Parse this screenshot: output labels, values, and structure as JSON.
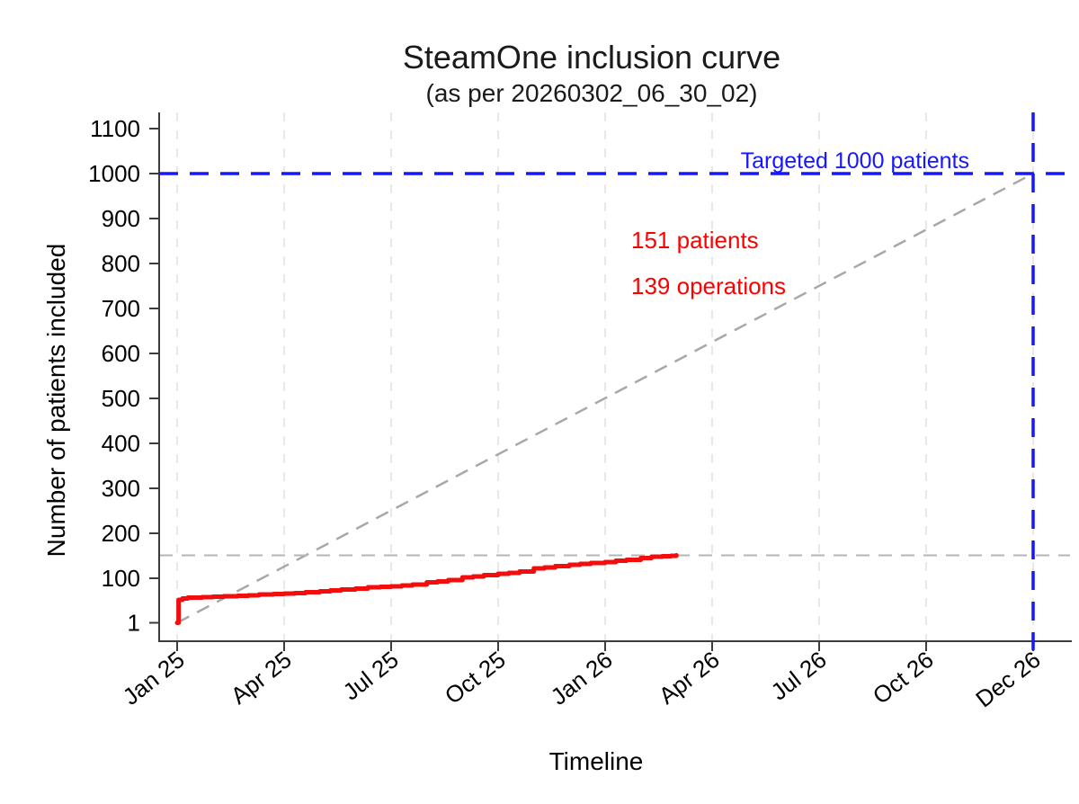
{
  "chart_data": {
    "type": "line",
    "title": "SteamOne inclusion curve",
    "subtitle": "(as per 20260302_06_30_02)",
    "xlabel": "Timeline",
    "ylabel": "Number of patients included",
    "y_ticks": [
      1,
      100,
      200,
      300,
      400,
      500,
      600,
      700,
      800,
      900,
      1000,
      1100
    ],
    "x_ticks": [
      "Jan 25",
      "Apr 25",
      "Jul 25",
      "Oct 25",
      "Jan 26",
      "Apr 26",
      "Jul 26",
      "Oct 26",
      "Dec 26"
    ],
    "x_tick_months": [
      0,
      3,
      6,
      9,
      12,
      15,
      18,
      21,
      24
    ],
    "ylim": [
      0,
      1136
    ],
    "xlim_months": [
      0,
      24.9
    ],
    "grid": "vertical-dashed",
    "legend": "none",
    "target_line": {
      "value": 1000,
      "label": "Targeted 1000 patients",
      "color": "#1616ff",
      "end_month": 24
    },
    "reference_diagonal": {
      "from_month": 0,
      "from_value": 1,
      "to_month": 24,
      "to_value": 1000,
      "color": "#a8a8a8"
    },
    "current_level_line": {
      "value": 151,
      "color": "#b5b5b5"
    },
    "annotations": {
      "patients": "151 patients",
      "operations": "139 operations",
      "color": "#ff0000"
    },
    "series": [
      {
        "name": "patients included",
        "color": "#f40d0d",
        "step": true,
        "points_month_value": [
          [
            0,
            1
          ],
          [
            0.04,
            52
          ],
          [
            0.15,
            55
          ],
          [
            0.3,
            57
          ],
          [
            0.7,
            58
          ],
          [
            1.0,
            59
          ],
          [
            1.3,
            60
          ],
          [
            1.7,
            61
          ],
          [
            2.0,
            62
          ],
          [
            2.3,
            64
          ],
          [
            2.7,
            65
          ],
          [
            3.0,
            66
          ],
          [
            3.3,
            67
          ],
          [
            3.6,
            69
          ],
          [
            4.0,
            71
          ],
          [
            4.3,
            73
          ],
          [
            4.6,
            75
          ],
          [
            5.0,
            77
          ],
          [
            5.35,
            80
          ],
          [
            5.7,
            81
          ],
          [
            6.0,
            82
          ],
          [
            6.3,
            84
          ],
          [
            6.6,
            86
          ],
          [
            7.0,
            91
          ],
          [
            7.3,
            93
          ],
          [
            7.6,
            96
          ],
          [
            8.0,
            102
          ],
          [
            8.3,
            104
          ],
          [
            8.6,
            107
          ],
          [
            9.0,
            110
          ],
          [
            9.3,
            112
          ],
          [
            9.6,
            115
          ],
          [
            10.0,
            122
          ],
          [
            10.3,
            124
          ],
          [
            10.6,
            127
          ],
          [
            11.0,
            130
          ],
          [
            11.3,
            132
          ],
          [
            11.6,
            134
          ],
          [
            12.0,
            136
          ],
          [
            12.3,
            139
          ],
          [
            12.6,
            141
          ],
          [
            13.0,
            145
          ],
          [
            13.3,
            148
          ],
          [
            13.6,
            149
          ],
          [
            13.85,
            150
          ],
          [
            14.0,
            151
          ]
        ]
      }
    ]
  }
}
